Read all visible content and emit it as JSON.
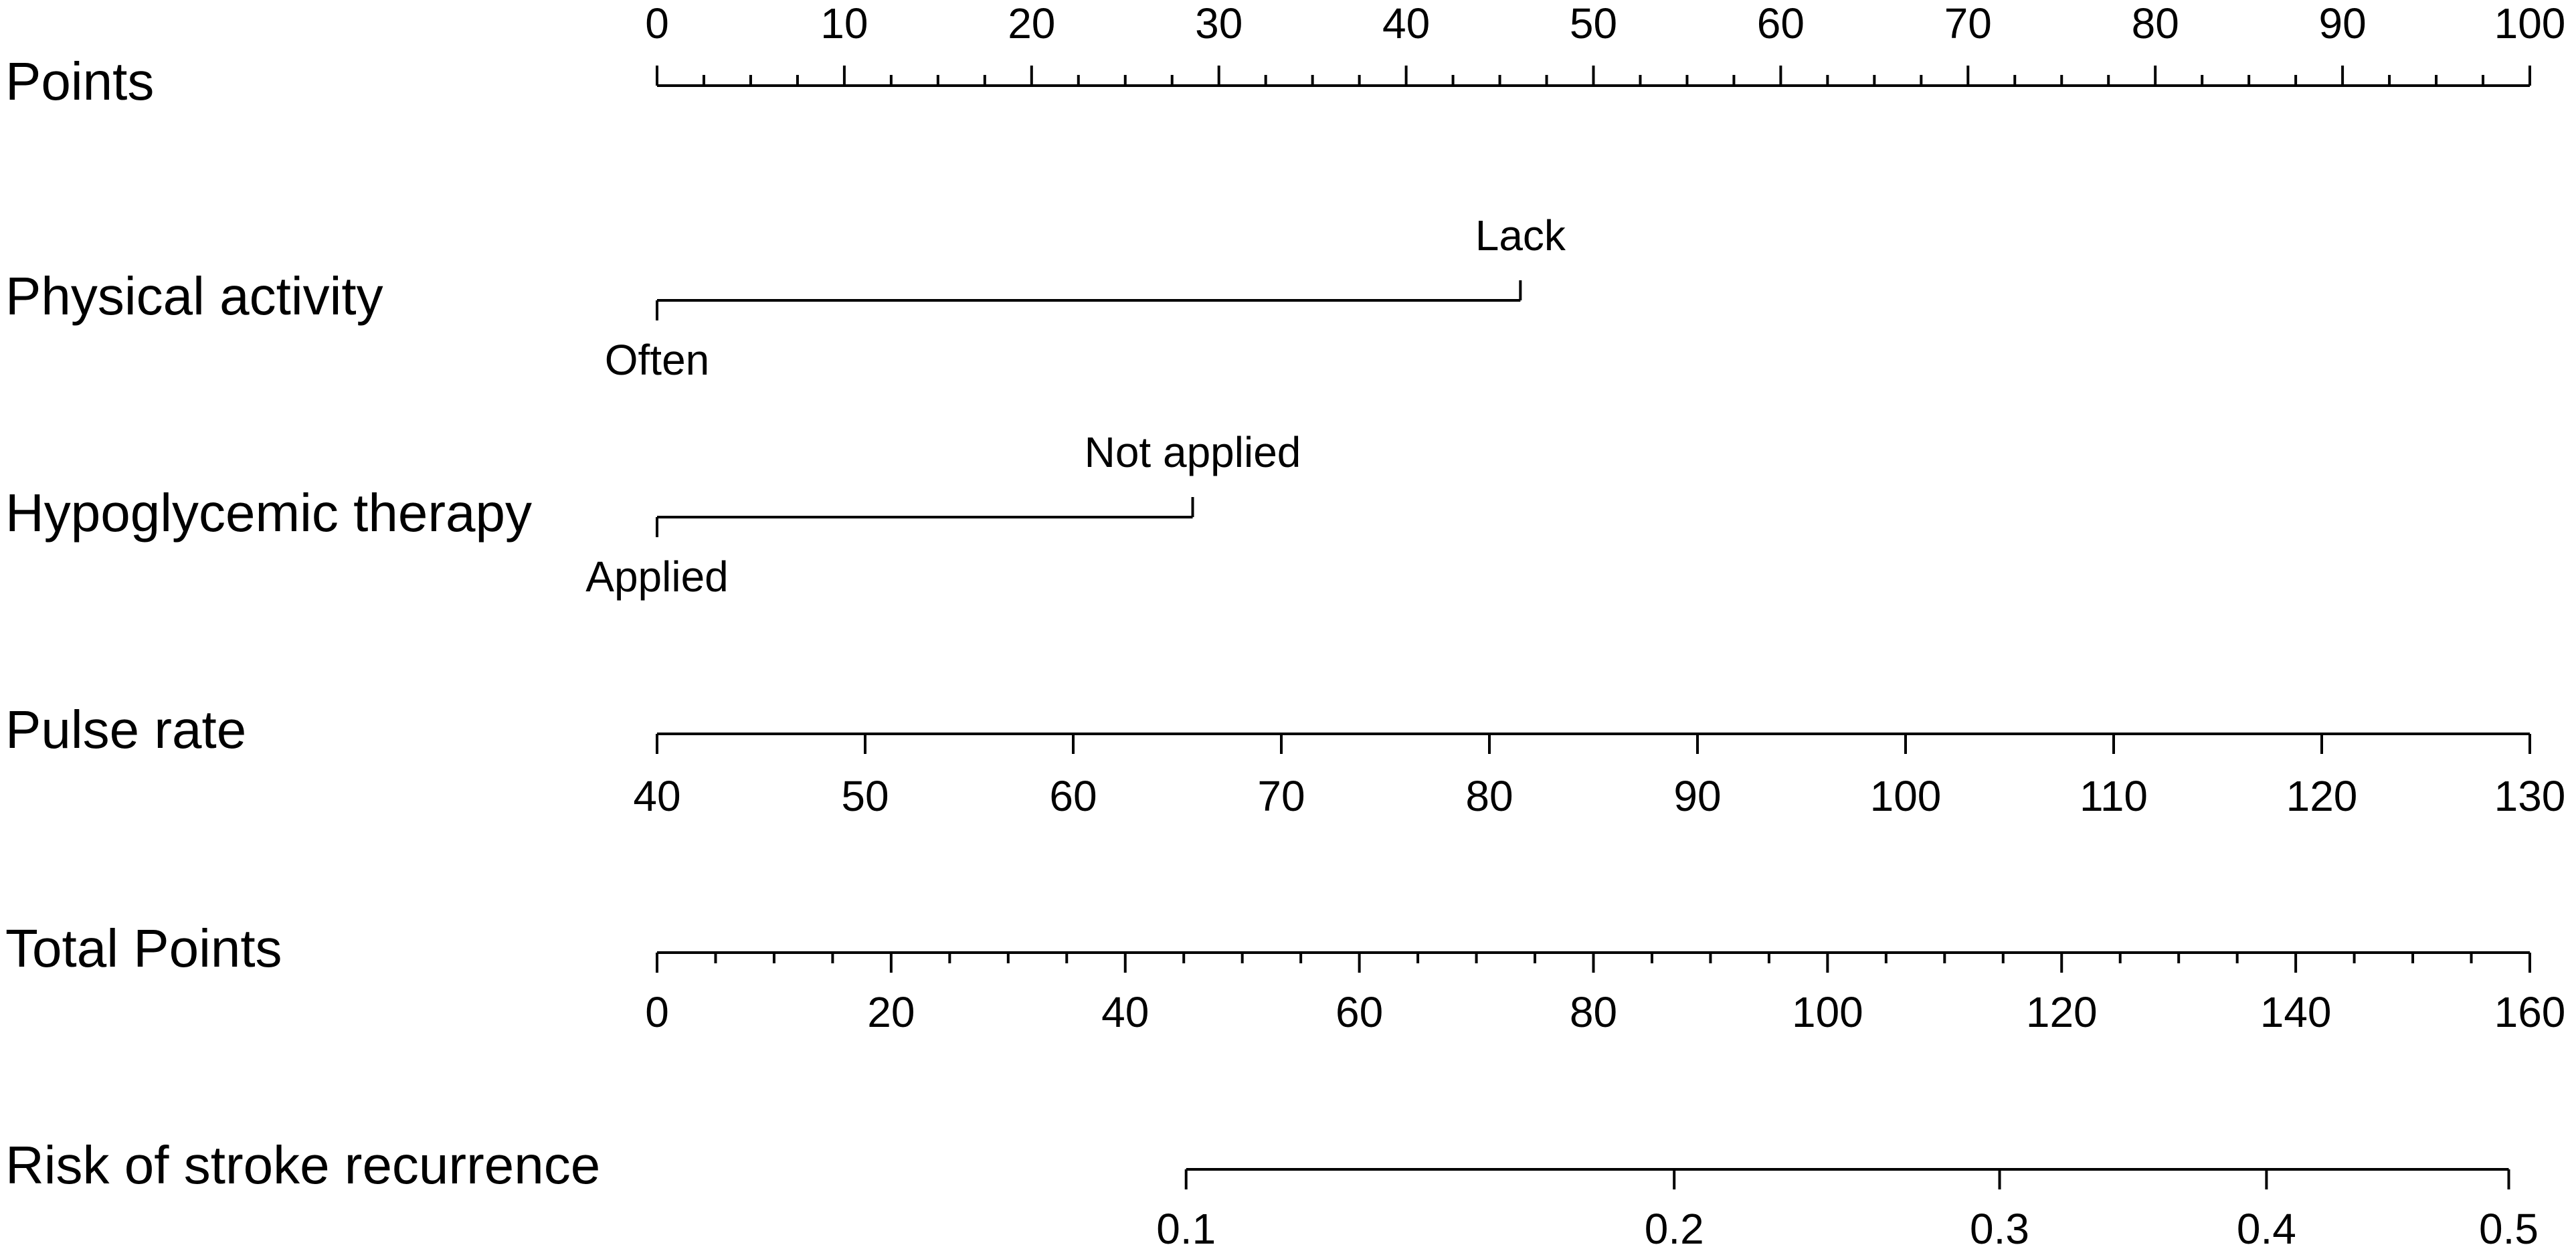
{
  "chart_data": {
    "type": "nomogram",
    "points_axis": {
      "label": "Points",
      "xlim": [
        0,
        100
      ],
      "xticks": [
        0,
        10,
        20,
        30,
        40,
        50,
        60,
        70,
        80,
        90,
        100
      ],
      "minor_ticks": [
        2.5,
        5,
        7.5,
        12.5,
        15,
        17.5,
        22.5,
        25,
        27.5,
        32.5,
        35,
        37.5,
        42.5,
        45,
        47.5,
        52.5,
        55,
        57.5,
        62.5,
        65,
        67.5,
        72.5,
        75,
        77.5,
        82.5,
        85,
        87.5,
        92.5,
        95,
        97.5
      ]
    },
    "categorical_variables": [
      {
        "label": "Physical activity",
        "levels": [
          "Often",
          "Lack"
        ],
        "points": [
          0,
          46.1
        ]
      },
      {
        "label": "Hypoglycemic therapy",
        "levels": [
          "Applied",
          "Not applied"
        ],
        "points": [
          0,
          28.6
        ]
      }
    ],
    "continuous_variable": {
      "label": "Pulse rate",
      "xlim": [
        40,
        130
      ],
      "points_lim": [
        0,
        100
      ],
      "xticks": [
        40,
        50,
        60,
        70,
        80,
        90,
        100,
        110,
        120,
        130
      ]
    },
    "total_points_axis": {
      "label": "Total Points",
      "xlim": [
        0,
        160
      ],
      "xticks": [
        0,
        20,
        40,
        60,
        80,
        100,
        120,
        140,
        160
      ],
      "minor_ticks": [
        5,
        10,
        15,
        25,
        30,
        35,
        45,
        50,
        55,
        65,
        70,
        75,
        85,
        90,
        95,
        105,
        110,
        115,
        125,
        130,
        135,
        145,
        150,
        155
      ]
    },
    "risk_axis": {
      "label": "Risk of stroke recurrence",
      "values": [
        0.1,
        0.2,
        0.3,
        0.4,
        0.5
      ],
      "total_points": [
        45.2,
        86.9,
        114.7,
        137.5,
        158.2
      ]
    }
  }
}
